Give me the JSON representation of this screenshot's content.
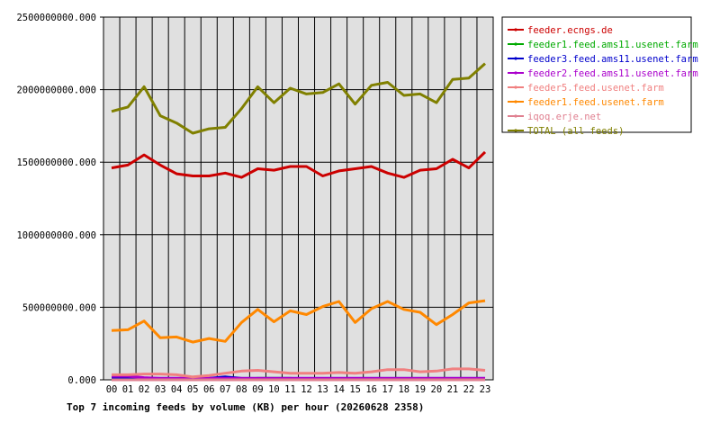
{
  "chart_data": {
    "type": "line",
    "title": "Top 7 incoming feeds by volume (KB) per hour (20260628 2358)",
    "xlabel": "",
    "ylabel": "",
    "categories": [
      "00",
      "01",
      "02",
      "03",
      "04",
      "05",
      "06",
      "07",
      "08",
      "09",
      "10",
      "11",
      "12",
      "13",
      "14",
      "15",
      "16",
      "17",
      "18",
      "19",
      "20",
      "21",
      "22",
      "23"
    ],
    "ylim": [
      0,
      2500000000
    ],
    "yticks": [
      {
        "value": 0,
        "label": "0.000"
      },
      {
        "value": 500000000,
        "label": "500000000.000"
      },
      {
        "value": 1000000000,
        "label": "1000000000.000"
      },
      {
        "value": 1500000000,
        "label": "1500000000.000"
      },
      {
        "value": 2000000000,
        "label": "2000000000.000"
      },
      {
        "value": 2500000000,
        "label": "2500000000.000"
      }
    ],
    "grid": true,
    "legend_position": "right",
    "series": [
      {
        "name": "feeder.ecngs.de",
        "color": "#cc0000",
        "values": [
          1460000000,
          1480000000,
          1550000000,
          1480000000,
          1420000000,
          1405000000,
          1405000000,
          1425000000,
          1395000000,
          1455000000,
          1445000000,
          1470000000,
          1470000000,
          1405000000,
          1440000000,
          1455000000,
          1470000000,
          1425000000,
          1395000000,
          1445000000,
          1455000000,
          1520000000,
          1460000000,
          1570000000
        ]
      },
      {
        "name": "feeder1.feed.ams11.usenet.farm",
        "color": "#00aa00",
        "values": [
          5000000,
          5000000,
          5000000,
          5000000,
          5000000,
          5000000,
          5000000,
          5000000,
          5000000,
          10000000,
          10000000,
          10000000,
          5000000,
          5000000,
          5000000,
          5000000,
          5000000,
          5000000,
          5000000,
          5000000,
          5000000,
          5000000,
          5000000,
          5000000
        ]
      },
      {
        "name": "feeder3.feed.ams11.usenet.farm",
        "color": "#0000cc",
        "values": [
          10000000,
          10000000,
          10000000,
          10000000,
          10000000,
          10000000,
          10000000,
          20000000,
          10000000,
          10000000,
          10000000,
          10000000,
          10000000,
          10000000,
          10000000,
          10000000,
          10000000,
          10000000,
          10000000,
          10000000,
          10000000,
          10000000,
          10000000,
          10000000
        ]
      },
      {
        "name": "feeder2.feed.ams11.usenet.farm",
        "color": "#aa00cc",
        "values": [
          25000000,
          25000000,
          15000000,
          10000000,
          10000000,
          10000000,
          10000000,
          10000000,
          10000000,
          10000000,
          10000000,
          10000000,
          10000000,
          10000000,
          10000000,
          10000000,
          10000000,
          10000000,
          10000000,
          10000000,
          10000000,
          10000000,
          10000000,
          10000000
        ]
      },
      {
        "name": "feeder5.feed.usenet.farm",
        "color": "#f08080",
        "values": [
          35000000,
          35000000,
          40000000,
          40000000,
          35000000,
          20000000,
          30000000,
          45000000,
          60000000,
          65000000,
          55000000,
          45000000,
          45000000,
          45000000,
          50000000,
          45000000,
          55000000,
          70000000,
          70000000,
          55000000,
          60000000,
          75000000,
          75000000,
          65000000
        ]
      },
      {
        "name": "feeder1.feed.usenet.farm",
        "color": "#ff8800",
        "values": [
          340000000,
          345000000,
          405000000,
          290000000,
          295000000,
          260000000,
          285000000,
          265000000,
          395000000,
          485000000,
          400000000,
          475000000,
          450000000,
          505000000,
          540000000,
          395000000,
          490000000,
          540000000,
          485000000,
          465000000,
          380000000,
          450000000,
          530000000,
          545000000
        ]
      },
      {
        "name": "iqoq.erje.net",
        "color": "#e08090",
        "values": [
          0,
          0,
          0,
          0,
          0,
          0,
          0,
          0,
          0,
          0,
          0,
          0,
          0,
          0,
          0,
          0,
          0,
          0,
          0,
          0,
          0,
          0,
          0,
          0
        ]
      },
      {
        "name": "TOTAL (all feeds)",
        "color": "#808000",
        "values": [
          1850000000,
          1880000000,
          2020000000,
          1820000000,
          1770000000,
          1700000000,
          1730000000,
          1740000000,
          1870000000,
          2020000000,
          1910000000,
          2010000000,
          1970000000,
          1980000000,
          2040000000,
          1900000000,
          2030000000,
          2050000000,
          1960000000,
          1970000000,
          1910000000,
          2070000000,
          2080000000,
          2180000000
        ]
      }
    ]
  }
}
